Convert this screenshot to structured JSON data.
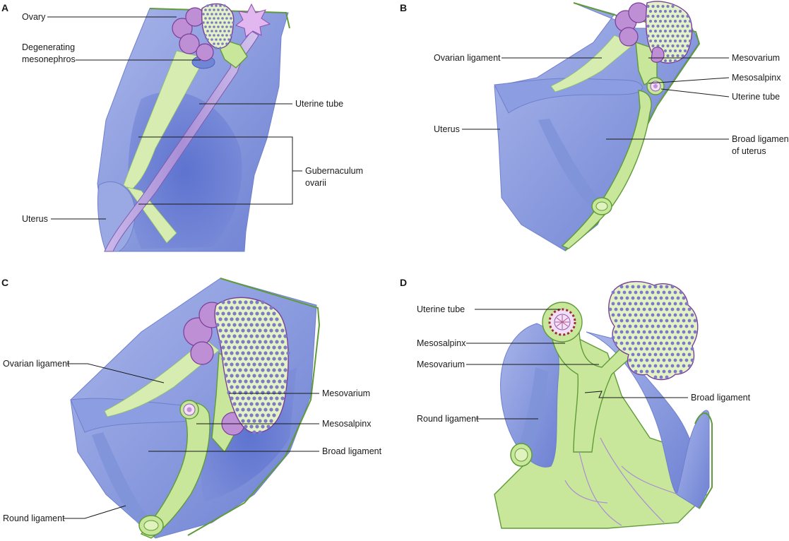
{
  "colors": {
    "peritoneum": "#8f9fe0",
    "peritoneum_shadow": "#5f73cf",
    "mesenchyme_green": "#c8e79a",
    "ovary_lobe": "#bf8fd6",
    "ovary_dots": "#7e7bc2",
    "uterine_tube": "#b7a2dc"
  },
  "panels": {
    "A": {
      "letter": "A",
      "labels": {
        "ovary": "Ovary",
        "degenerating_mesonephros_1": "Degenerating",
        "degenerating_mesonephros_2": "mesonephros",
        "uterine_tube": "Uterine tube",
        "gubernaculum_1": "Gubernaculum",
        "gubernaculum_2": "ovarii",
        "uterus": "Uterus"
      }
    },
    "B": {
      "letter": "B",
      "labels": {
        "ovarian_ligament": "Ovarian ligament",
        "mesovarium": "Mesovarium",
        "mesosalpinx": "Mesosalpinx",
        "uterine_tube": "Uterine tube",
        "uterus": "Uterus",
        "broad_ligament_1": "Broad ligament",
        "broad_ligament_2": "of uterus"
      }
    },
    "C": {
      "letter": "C",
      "labels": {
        "ovarian_ligament": "Ovarian ligament",
        "mesovarium": "Mesovarium",
        "mesosalpinx": "Mesosalpinx",
        "broad_ligament": "Broad ligament",
        "round_ligament": "Round ligament"
      }
    },
    "D": {
      "letter": "D",
      "labels": {
        "uterine_tube": "Uterine tube",
        "mesosalpinx": "Mesosalpinx",
        "mesovarium": "Mesovarium",
        "broad_ligament": "Broad ligament",
        "round_ligament": "Round ligament"
      }
    }
  }
}
